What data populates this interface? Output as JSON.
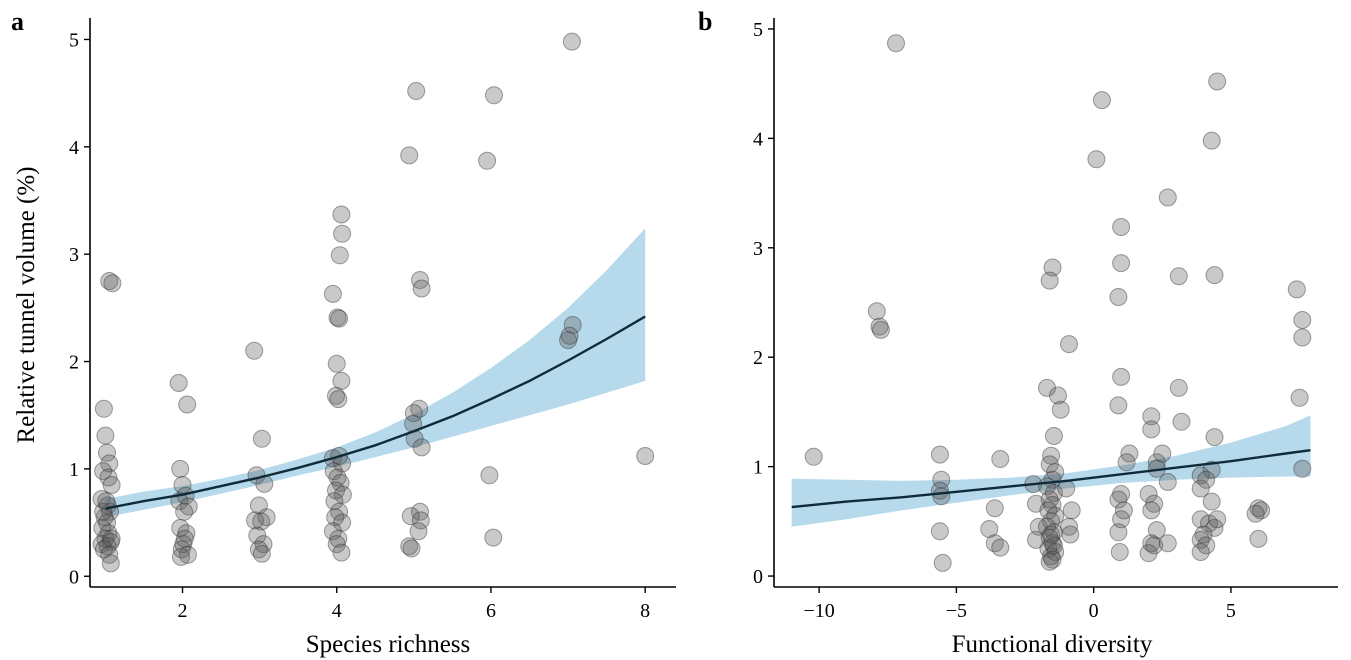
{
  "chart_data": [
    {
      "type": "scatter",
      "panel_label": "a",
      "xlabel": "Species richness",
      "ylabel": "Relative tunnel volume (%)",
      "xlim": [
        0.8,
        8.4
      ],
      "ylim": [
        -0.1,
        5.2
      ],
      "xticks": [
        2,
        4,
        6,
        8
      ],
      "yticks": [
        0,
        1,
        2,
        3,
        4,
        5
      ],
      "grid": false,
      "points": [
        [
          0.98,
          1.56
        ],
        [
          1.0,
          1.31
        ],
        [
          1.02,
          1.15
        ],
        [
          1.05,
          1.05
        ],
        [
          0.97,
          0.98
        ],
        [
          1.04,
          0.92
        ],
        [
          1.08,
          0.85
        ],
        [
          0.95,
          0.72
        ],
        [
          1.03,
          0.66
        ],
        [
          1.06,
          0.6
        ],
        [
          0.99,
          0.55
        ],
        [
          1.02,
          0.5
        ],
        [
          0.96,
          0.45
        ],
        [
          1.04,
          0.4
        ],
        [
          1.0,
          0.35
        ],
        [
          1.07,
          0.32
        ],
        [
          0.95,
          0.3
        ],
        [
          1.03,
          0.28
        ],
        [
          0.98,
          0.25
        ],
        [
          1.05,
          0.2
        ],
        [
          1.07,
          0.12
        ],
        [
          0.97,
          0.6
        ],
        [
          1.01,
          0.7
        ],
        [
          1.08,
          0.35
        ],
        [
          1.05,
          2.75
        ],
        [
          1.09,
          2.73
        ],
        [
          1.95,
          1.8
        ],
        [
          2.06,
          1.6
        ],
        [
          1.97,
          1.0
        ],
        [
          2.0,
          0.85
        ],
        [
          2.04,
          0.75
        ],
        [
          1.96,
          0.7
        ],
        [
          2.08,
          0.65
        ],
        [
          2.02,
          0.6
        ],
        [
          1.97,
          0.45
        ],
        [
          2.05,
          0.4
        ],
        [
          2.01,
          0.3
        ],
        [
          1.99,
          0.25
        ],
        [
          2.07,
          0.2
        ],
        [
          1.98,
          0.18
        ],
        [
          2.03,
          0.35
        ],
        [
          2.93,
          2.1
        ],
        [
          3.03,
          1.28
        ],
        [
          2.96,
          0.94
        ],
        [
          3.06,
          0.86
        ],
        [
          2.99,
          0.66
        ],
        [
          3.09,
          0.55
        ],
        [
          2.94,
          0.52
        ],
        [
          3.02,
          0.51
        ],
        [
          2.97,
          0.38
        ],
        [
          3.05,
          0.3
        ],
        [
          2.99,
          0.25
        ],
        [
          3.03,
          0.21
        ],
        [
          4.06,
          3.37
        ],
        [
          4.07,
          3.19
        ],
        [
          4.04,
          2.99
        ],
        [
          3.95,
          2.63
        ],
        [
          4.01,
          2.41
        ],
        [
          4.03,
          2.4
        ],
        [
          4.0,
          1.98
        ],
        [
          4.06,
          1.82
        ],
        [
          3.99,
          1.68
        ],
        [
          4.02,
          1.65
        ],
        [
          3.95,
          1.1
        ],
        [
          4.03,
          1.12
        ],
        [
          4.07,
          1.05
        ],
        [
          3.96,
          0.98
        ],
        [
          4.01,
          0.92
        ],
        [
          4.05,
          0.87
        ],
        [
          3.99,
          0.8
        ],
        [
          4.08,
          0.76
        ],
        [
          3.97,
          0.7
        ],
        [
          4.03,
          0.6
        ],
        [
          3.98,
          0.55
        ],
        [
          4.07,
          0.5
        ],
        [
          3.95,
          0.42
        ],
        [
          4.02,
          0.35
        ],
        [
          4.0,
          0.3
        ],
        [
          4.06,
          0.22
        ],
        [
          5.03,
          4.52
        ],
        [
          4.94,
          3.92
        ],
        [
          5.08,
          2.76
        ],
        [
          5.1,
          2.68
        ],
        [
          5.07,
          1.56
        ],
        [
          5.0,
          1.52
        ],
        [
          4.99,
          1.42
        ],
        [
          5.01,
          1.28
        ],
        [
          5.1,
          1.2
        ],
        [
          5.08,
          0.6
        ],
        [
          4.96,
          0.56
        ],
        [
          5.09,
          0.52
        ],
        [
          5.06,
          0.42
        ],
        [
          4.94,
          0.28
        ],
        [
          4.97,
          0.26
        ],
        [
          6.04,
          4.48
        ],
        [
          5.95,
          3.87
        ],
        [
          5.98,
          0.94
        ],
        [
          6.03,
          0.36
        ],
        [
          7.05,
          4.98
        ],
        [
          7.06,
          2.34
        ],
        [
          7.0,
          2.2
        ],
        [
          7.02,
          2.24
        ],
        [
          8.0,
          1.12
        ]
      ],
      "fit_x": [
        1,
        1.5,
        2,
        2.5,
        3,
        3.5,
        4,
        4.5,
        5,
        5.5,
        6,
        6.5,
        7,
        7.5,
        8
      ],
      "fit_y": [
        0.63,
        0.7,
        0.76,
        0.84,
        0.92,
        1.01,
        1.11,
        1.22,
        1.35,
        1.49,
        1.65,
        1.82,
        2.01,
        2.21,
        2.42
      ],
      "ci_low": [
        0.55,
        0.62,
        0.69,
        0.77,
        0.85,
        0.94,
        1.02,
        1.11,
        1.2,
        1.3,
        1.4,
        1.5,
        1.6,
        1.71,
        1.82
      ],
      "ci_high": [
        0.72,
        0.79,
        0.84,
        0.91,
        0.99,
        1.09,
        1.2,
        1.34,
        1.51,
        1.71,
        1.94,
        2.2,
        2.5,
        2.85,
        3.24
      ]
    },
    {
      "type": "scatter",
      "panel_label": "b",
      "xlabel": "Functional diversity",
      "ylabel": "",
      "xlim": [
        -12.3,
        8.9
      ],
      "ylim": [
        -0.1,
        5.1
      ],
      "xticks": [
        -10,
        -5,
        0,
        5
      ],
      "xtick_labels": [
        "−10",
        "−5",
        "0",
        "5"
      ],
      "yticks": [
        0,
        1,
        2,
        3,
        4,
        5
      ],
      "grid": false,
      "points": [
        [
          -7.2,
          4.87
        ],
        [
          -10.2,
          1.09
        ],
        [
          -7.9,
          2.42
        ],
        [
          -7.8,
          2.28
        ],
        [
          -7.75,
          2.25
        ],
        [
          -5.6,
          1.11
        ],
        [
          -5.55,
          0.88
        ],
        [
          -5.6,
          0.78
        ],
        [
          -5.55,
          0.73
        ],
        [
          -5.6,
          0.41
        ],
        [
          -5.5,
          0.12
        ],
        [
          -3.4,
          1.07
        ],
        [
          -3.6,
          0.62
        ],
        [
          -3.8,
          0.43
        ],
        [
          -3.6,
          0.3
        ],
        [
          -3.4,
          0.26
        ],
        [
          -2.2,
          0.84
        ],
        [
          -2.1,
          0.66
        ],
        [
          -2.0,
          0.45
        ],
        [
          -2.1,
          0.33
        ],
        [
          -1.5,
          2.82
        ],
        [
          -1.6,
          2.7
        ],
        [
          -1.7,
          1.72
        ],
        [
          -1.3,
          1.65
        ],
        [
          -1.2,
          1.52
        ],
        [
          -1.45,
          1.28
        ],
        [
          -1.55,
          1.1
        ],
        [
          -1.6,
          1.02
        ],
        [
          -1.4,
          0.95
        ],
        [
          -1.5,
          0.88
        ],
        [
          -1.7,
          0.82
        ],
        [
          -1.45,
          0.76
        ],
        [
          -1.6,
          0.7
        ],
        [
          -1.5,
          0.65
        ],
        [
          -1.65,
          0.6
        ],
        [
          -1.4,
          0.55
        ],
        [
          -1.55,
          0.5
        ],
        [
          -1.7,
          0.45
        ],
        [
          -1.45,
          0.4
        ],
        [
          -1.6,
          0.35
        ],
        [
          -1.5,
          0.3
        ],
        [
          -1.65,
          0.25
        ],
        [
          -1.4,
          0.22
        ],
        [
          -1.55,
          0.18
        ],
        [
          -1.5,
          0.15
        ],
        [
          -1.6,
          0.13
        ],
        [
          -1.45,
          0.28
        ],
        [
          -1.55,
          0.38
        ],
        [
          -0.9,
          2.12
        ],
        [
          -1.0,
          0.8
        ],
        [
          -0.8,
          0.6
        ],
        [
          -0.9,
          0.45
        ],
        [
          -0.85,
          0.38
        ],
        [
          0.3,
          4.35
        ],
        [
          0.1,
          3.81
        ],
        [
          1.0,
          3.19
        ],
        [
          1.0,
          2.86
        ],
        [
          0.9,
          2.55
        ],
        [
          1.0,
          1.82
        ],
        [
          0.9,
          1.56
        ],
        [
          1.3,
          1.12
        ],
        [
          1.2,
          1.04
        ],
        [
          1.0,
          0.75
        ],
        [
          0.9,
          0.7
        ],
        [
          1.1,
          0.6
        ],
        [
          1.0,
          0.52
        ],
        [
          0.9,
          0.4
        ],
        [
          0.95,
          0.22
        ],
        [
          2.7,
          3.46
        ],
        [
          3.1,
          2.74
        ],
        [
          3.1,
          1.72
        ],
        [
          3.2,
          1.41
        ],
        [
          2.1,
          1.46
        ],
        [
          2.1,
          1.34
        ],
        [
          2.3,
          1.04
        ],
        [
          2.5,
          1.12
        ],
        [
          2.3,
          0.98
        ],
        [
          2.7,
          0.86
        ],
        [
          2.0,
          0.75
        ],
        [
          2.2,
          0.66
        ],
        [
          2.1,
          0.6
        ],
        [
          2.3,
          0.42
        ],
        [
          2.1,
          0.3
        ],
        [
          2.2,
          0.28
        ],
        [
          2.0,
          0.21
        ],
        [
          2.7,
          0.3
        ],
        [
          4.5,
          4.52
        ],
        [
          4.3,
          3.98
        ],
        [
          4.4,
          2.75
        ],
        [
          4.4,
          1.27
        ],
        [
          4.3,
          0.97
        ],
        [
          3.9,
          0.92
        ],
        [
          4.1,
          0.88
        ],
        [
          3.9,
          0.8
        ],
        [
          4.3,
          0.68
        ],
        [
          3.9,
          0.52
        ],
        [
          4.2,
          0.48
        ],
        [
          4.4,
          0.44
        ],
        [
          4.0,
          0.38
        ],
        [
          3.9,
          0.33
        ],
        [
          4.1,
          0.28
        ],
        [
          3.9,
          0.22
        ],
        [
          4.5,
          0.52
        ],
        [
          6.0,
          0.62
        ],
        [
          6.1,
          0.6
        ],
        [
          5.9,
          0.57
        ],
        [
          6.0,
          0.34
        ],
        [
          7.4,
          2.62
        ],
        [
          7.6,
          2.34
        ],
        [
          7.6,
          2.18
        ],
        [
          7.5,
          1.63
        ],
        [
          7.6,
          0.98
        ]
      ],
      "fit_x": [
        -11,
        -9,
        -7,
        -5,
        -3,
        -1,
        1,
        3,
        5,
        7,
        7.9
      ],
      "fit_y": [
        0.63,
        0.68,
        0.72,
        0.77,
        0.82,
        0.87,
        0.93,
        0.99,
        1.05,
        1.12,
        1.15
      ],
      "ci_low": [
        0.45,
        0.52,
        0.6,
        0.67,
        0.74,
        0.8,
        0.85,
        0.88,
        0.9,
        0.91,
        0.91
      ],
      "ci_high": [
        0.89,
        0.88,
        0.87,
        0.88,
        0.9,
        0.94,
        1.01,
        1.1,
        1.22,
        1.37,
        1.47
      ]
    }
  ]
}
